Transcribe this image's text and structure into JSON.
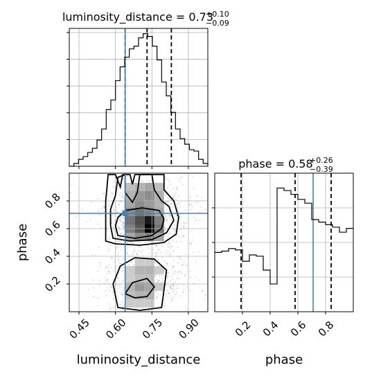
{
  "chart_data": {
    "type": "corner",
    "parameters": [
      "luminosity_distance",
      "phase"
    ],
    "colors": {
      "truth": "#4682b4",
      "density": "#000000",
      "grid": "#b0b0b0"
    },
    "truths": {
      "luminosity_distance": 0.64,
      "phase": 0.71
    },
    "panels": {
      "luminosity_distance_hist": {
        "type": "histogram",
        "title_name": "luminosity_distance",
        "title_median": "0.73",
        "title_plus": "+0.10",
        "title_minus": "−0.09",
        "xlim": [
          0.41,
          0.98
        ],
        "bin_edges": [
          0.41,
          0.429,
          0.448,
          0.467,
          0.486,
          0.505,
          0.524,
          0.543,
          0.562,
          0.581,
          0.6,
          0.619,
          0.638,
          0.657,
          0.676,
          0.695,
          0.714,
          0.733,
          0.752,
          0.771,
          0.79,
          0.809,
          0.828,
          0.847,
          0.866,
          0.885,
          0.904,
          0.923,
          0.942,
          0.961,
          0.98
        ],
        "counts": [
          0.0,
          0.02,
          0.05,
          0.07,
          0.1,
          0.13,
          0.19,
          0.27,
          0.41,
          0.48,
          0.62,
          0.72,
          0.79,
          0.85,
          0.87,
          0.93,
          0.96,
          0.94,
          0.87,
          0.77,
          0.61,
          0.51,
          0.39,
          0.27,
          0.2,
          0.16,
          0.12,
          0.11,
          0.05,
          0.02
        ],
        "quantiles": [
          0.64,
          0.73,
          0.83
        ]
      },
      "phase_hist": {
        "type": "histogram",
        "title_name": "phase",
        "title_median": "0.58",
        "title_plus": "+0.26",
        "title_minus": "−0.39",
        "xlim": [
          0.0,
          1.0
        ],
        "bin_edges": [
          0.0,
          0.05,
          0.1,
          0.15,
          0.2,
          0.25,
          0.3,
          0.35,
          0.4,
          0.45,
          0.5,
          0.55,
          0.6,
          0.65,
          0.7,
          0.75,
          0.8,
          0.85,
          0.9,
          0.95,
          1.0
        ],
        "counts": [
          0.47,
          0.48,
          0.5,
          0.49,
          0.4,
          0.45,
          0.44,
          0.33,
          0.22,
          0.98,
          0.96,
          0.93,
          0.89,
          0.86,
          0.73,
          0.71,
          0.69,
          0.67,
          0.63,
          0.66
        ],
        "quantiles": [
          0.19,
          0.58,
          0.84
        ],
        "xticks": [
          0.2,
          0.4,
          0.6,
          0.8
        ],
        "xticklabels": [
          "0.2",
          "0.4",
          "0.6",
          "0.8"
        ],
        "xlabel": "phase"
      },
      "joint": {
        "type": "2d-density",
        "x_param": "luminosity_distance",
        "y_param": "phase",
        "xlim": [
          0.41,
          0.98
        ],
        "ylim": [
          0.0,
          1.0
        ],
        "xticks": [
          0.45,
          0.6,
          0.75,
          0.9
        ],
        "xticklabels": [
          "0.45",
          "0.60",
          "0.75",
          "0.90"
        ],
        "yticks": [
          0.2,
          0.4,
          0.6,
          0.8
        ],
        "yticklabels": [
          "0.2",
          "0.4",
          "0.6",
          "0.8"
        ],
        "xlabel": "luminosity_distance",
        "ylabel": "phase",
        "density_cells": [
          {
            "x": 0.66,
            "y": 0.9,
            "v": 0.25
          },
          {
            "x": 0.7,
            "y": 0.9,
            "v": 0.3
          },
          {
            "x": 0.74,
            "y": 0.9,
            "v": 0.35
          },
          {
            "x": 0.78,
            "y": 0.9,
            "v": 0.25
          },
          {
            "x": 0.66,
            "y": 0.84,
            "v": 0.3
          },
          {
            "x": 0.7,
            "y": 0.84,
            "v": 0.4
          },
          {
            "x": 0.74,
            "y": 0.84,
            "v": 0.45
          },
          {
            "x": 0.78,
            "y": 0.84,
            "v": 0.3
          },
          {
            "x": 0.66,
            "y": 0.78,
            "v": 0.35
          },
          {
            "x": 0.7,
            "y": 0.78,
            "v": 0.45
          },
          {
            "x": 0.74,
            "y": 0.78,
            "v": 0.4
          },
          {
            "x": 0.78,
            "y": 0.78,
            "v": 0.3
          },
          {
            "x": 0.66,
            "y": 0.72,
            "v": 0.45
          },
          {
            "x": 0.7,
            "y": 0.72,
            "v": 0.55
          },
          {
            "x": 0.74,
            "y": 0.72,
            "v": 0.5
          },
          {
            "x": 0.78,
            "y": 0.72,
            "v": 0.35
          },
          {
            "x": 0.66,
            "y": 0.66,
            "v": 0.55
          },
          {
            "x": 0.7,
            "y": 0.66,
            "v": 0.7
          },
          {
            "x": 0.74,
            "y": 0.66,
            "v": 0.9
          },
          {
            "x": 0.78,
            "y": 0.66,
            "v": 0.5
          },
          {
            "x": 0.66,
            "y": 0.6,
            "v": 0.5
          },
          {
            "x": 0.7,
            "y": 0.6,
            "v": 0.65
          },
          {
            "x": 0.74,
            "y": 0.6,
            "v": 1.0
          },
          {
            "x": 0.78,
            "y": 0.6,
            "v": 0.55
          },
          {
            "x": 0.66,
            "y": 0.54,
            "v": 0.35
          },
          {
            "x": 0.7,
            "y": 0.54,
            "v": 0.45
          },
          {
            "x": 0.74,
            "y": 0.54,
            "v": 0.5
          },
          {
            "x": 0.78,
            "y": 0.54,
            "v": 0.35
          },
          {
            "x": 0.7,
            "y": 0.36,
            "v": 0.2
          },
          {
            "x": 0.74,
            "y": 0.36,
            "v": 0.2
          },
          {
            "x": 0.66,
            "y": 0.3,
            "v": 0.2
          },
          {
            "x": 0.7,
            "y": 0.3,
            "v": 0.3
          },
          {
            "x": 0.74,
            "y": 0.3,
            "v": 0.3
          },
          {
            "x": 0.78,
            "y": 0.3,
            "v": 0.2
          },
          {
            "x": 0.66,
            "y": 0.24,
            "v": 0.2
          },
          {
            "x": 0.7,
            "y": 0.24,
            "v": 0.25
          },
          {
            "x": 0.74,
            "y": 0.24,
            "v": 0.25
          },
          {
            "x": 0.66,
            "y": 0.18,
            "v": 0.3
          },
          {
            "x": 0.7,
            "y": 0.18,
            "v": 0.4
          },
          {
            "x": 0.74,
            "y": 0.18,
            "v": 0.35
          },
          {
            "x": 0.78,
            "y": 0.18,
            "v": 0.2
          },
          {
            "x": 0.66,
            "y": 0.12,
            "v": 0.25
          },
          {
            "x": 0.7,
            "y": 0.12,
            "v": 0.3
          },
          {
            "x": 0.74,
            "y": 0.12,
            "v": 0.3
          },
          {
            "x": 0.66,
            "y": 0.06,
            "v": 0.2
          },
          {
            "x": 0.7,
            "y": 0.06,
            "v": 0.2
          },
          {
            "x": 0.74,
            "y": 0.06,
            "v": 0.2
          }
        ],
        "contours": [
          [
            [
              0.61,
              0.55
            ],
            [
              0.6,
              0.62
            ],
            [
              0.61,
              0.68
            ],
            [
              0.64,
              0.73
            ],
            [
              0.71,
              0.75
            ],
            [
              0.78,
              0.73
            ],
            [
              0.8,
              0.67
            ],
            [
              0.79,
              0.6
            ],
            [
              0.75,
              0.55
            ],
            [
              0.68,
              0.53
            ],
            [
              0.61,
              0.55
            ]
          ],
          [
            [
              0.59,
              0.53
            ],
            [
              0.58,
              0.62
            ],
            [
              0.58,
              0.74
            ],
            [
              0.6,
              0.84
            ],
            [
              0.61,
              0.97
            ],
            [
              0.64,
              0.99
            ],
            [
              0.64,
              0.86
            ],
            [
              0.67,
              0.79
            ],
            [
              0.69,
              0.86
            ],
            [
              0.7,
              0.99
            ],
            [
              0.75,
              0.99
            ],
            [
              0.76,
              0.88
            ],
            [
              0.79,
              0.8
            ],
            [
              0.82,
              0.76
            ],
            [
              0.84,
              0.66
            ],
            [
              0.81,
              0.57
            ],
            [
              0.75,
              0.52
            ],
            [
              0.66,
              0.51
            ],
            [
              0.59,
              0.53
            ]
          ],
          [
            [
              0.56,
              0.51
            ],
            [
              0.56,
              0.64
            ],
            [
              0.56,
              0.8
            ],
            [
              0.57,
              0.99
            ],
            [
              0.6,
              0.99
            ],
            [
              0.62,
              0.9
            ],
            [
              0.63,
              0.99
            ],
            [
              0.66,
              0.99
            ],
            [
              0.67,
              0.92
            ],
            [
              0.68,
              0.99
            ],
            [
              0.8,
              0.99
            ],
            [
              0.8,
              0.88
            ],
            [
              0.84,
              0.8
            ],
            [
              0.86,
              0.68
            ],
            [
              0.85,
              0.56
            ],
            [
              0.8,
              0.5
            ],
            [
              0.7,
              0.48
            ],
            [
              0.6,
              0.49
            ],
            [
              0.56,
              0.51
            ]
          ],
          [
            [
              0.61,
              0.03
            ],
            [
              0.59,
              0.2
            ],
            [
              0.62,
              0.33
            ],
            [
              0.68,
              0.39
            ],
            [
              0.76,
              0.38
            ],
            [
              0.81,
              0.3
            ],
            [
              0.8,
              0.16
            ],
            [
              0.79,
              0.03
            ],
            [
              0.7,
              0.01
            ],
            [
              0.61,
              0.03
            ]
          ],
          [
            [
              0.64,
              0.13
            ],
            [
              0.67,
              0.21
            ],
            [
              0.73,
              0.24
            ],
            [
              0.76,
              0.18
            ],
            [
              0.73,
              0.11
            ],
            [
              0.68,
              0.1
            ],
            [
              0.64,
              0.13
            ]
          ]
        ]
      }
    }
  }
}
